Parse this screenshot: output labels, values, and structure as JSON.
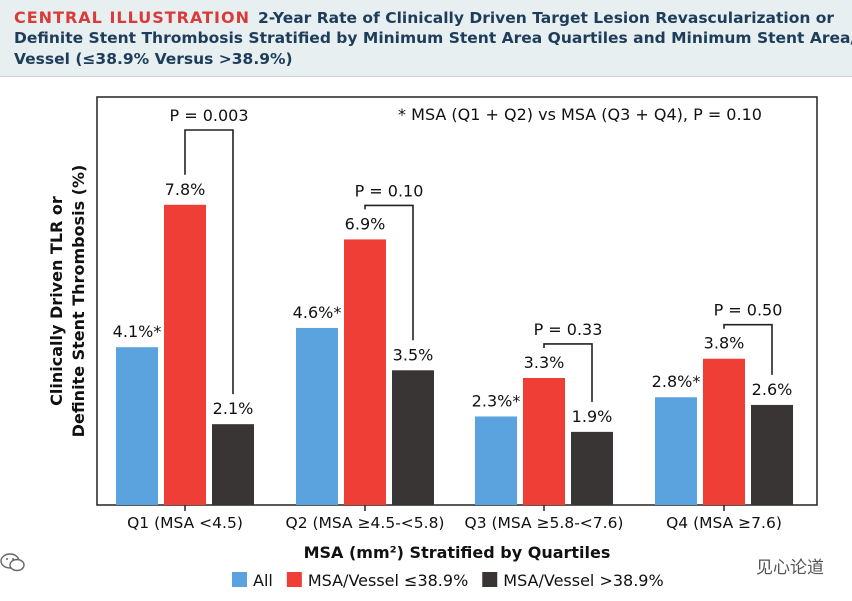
{
  "header": {
    "kicker": "CENTRAL ILLUSTRATION",
    "title_line1": "2-Year Rate of Clinically Driven Target Lesion Revascularization or",
    "title_line2": "Definite Stent Thrombosis Stratified by Minimum Stent Area Quartiles and Minimum Stent Area/",
    "title_line3": "Vessel (≤38.9% Versus >38.9%)"
  },
  "watermark": "见心论道",
  "colors": {
    "all": "#5ba3df",
    "low": "#ef3e36",
    "high": "#3a3535",
    "header_bg": "#e7eff1",
    "kicker": "#d93a3a",
    "title": "#1e3d5a"
  },
  "chart_data": {
    "type": "bar",
    "ylabel_line1": "Clinically Driven TLR or",
    "ylabel_line2": "Definite Stent Thrombosis (%)",
    "xlabel": "MSA (mm²) Stratified by Quartiles",
    "ylim": [
      0,
      10.6
    ],
    "categories": [
      "Q1 (MSA <4.5)",
      "Q2 (MSA ≥4.5-<5.8)",
      "Q3 (MSA ≥5.8-<7.6)",
      "Q4 (MSA ≥7.6)"
    ],
    "series": [
      {
        "name": "All",
        "values": [
          4.1,
          4.6,
          2.3,
          2.8
        ],
        "labels": [
          "4.1%*",
          "4.6%*",
          "2.3%*",
          "2.8%*"
        ]
      },
      {
        "name": "MSA/Vessel ≤38.9%",
        "values": [
          7.8,
          6.9,
          3.3,
          3.8
        ],
        "labels": [
          "7.8%",
          "6.9%",
          "3.3%",
          "3.8%"
        ]
      },
      {
        "name": "MSA/Vessel >38.9%",
        "values": [
          2.1,
          3.5,
          1.9,
          2.6
        ],
        "labels": [
          "2.1%",
          "3.5%",
          "1.9%",
          "2.6%"
        ]
      }
    ],
    "pvalues": [
      "P = 0.003",
      "P = 0.10",
      "P = 0.33",
      "P = 0.50"
    ],
    "annotation": "* MSA (Q1 + Q2) vs MSA (Q3 + Q4), P = 0.10",
    "grid": false,
    "legend": "bottom"
  }
}
